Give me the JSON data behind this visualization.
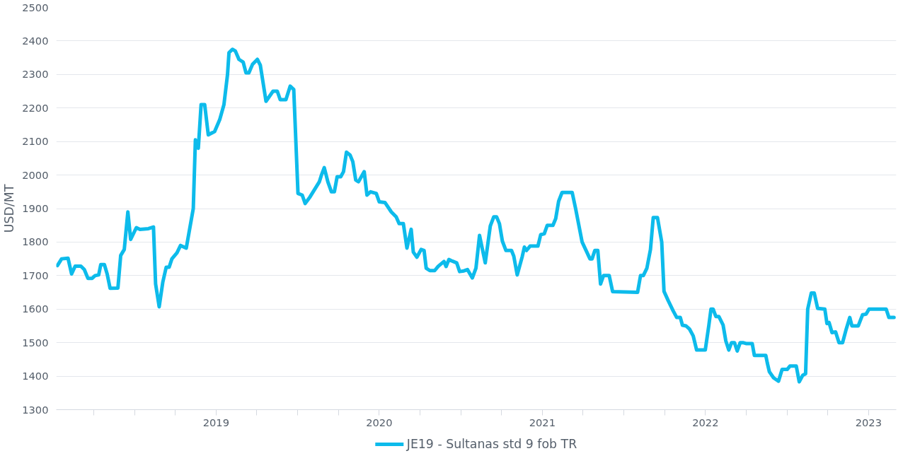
{
  "chart_data": {
    "type": "line",
    "ylabel": "USD/MT",
    "legend": "bottom",
    "grid": "y",
    "marker": "none",
    "line_style": "solid",
    "xlim": [
      2018.02,
      2023.17
    ],
    "ylim": [
      1300,
      2500
    ],
    "yticks": [
      1300,
      1400,
      1500,
      1600,
      1700,
      1800,
      1900,
      2000,
      2100,
      2200,
      2300,
      2400,
      2500
    ],
    "xticks": [
      {
        "value": 2018.25,
        "label": null
      },
      {
        "value": 2018.5,
        "label": null
      },
      {
        "value": 2018.75,
        "label": null
      },
      2019,
      {
        "value": 2019.25,
        "label": null
      },
      {
        "value": 2019.5,
        "label": null
      },
      {
        "value": 2019.75,
        "label": null
      },
      2020,
      {
        "value": 2020.25,
        "label": null
      },
      {
        "value": 2020.5,
        "label": null
      },
      {
        "value": 2020.75,
        "label": null
      },
      2021,
      {
        "value": 2021.25,
        "label": null
      },
      {
        "value": 2021.5,
        "label": null
      },
      {
        "value": 2021.75,
        "label": null
      },
      2022,
      {
        "value": 2022.25,
        "label": null
      },
      {
        "value": 2022.5,
        "label": null
      },
      {
        "value": 2022.75,
        "label": null
      },
      2023
    ],
    "series": [
      {
        "name": "JE19 - Sultanas std 9 fob TR",
        "color": "#0dbbeb",
        "x": [
          2018.027,
          2018.053,
          2018.092,
          2018.114,
          2018.136,
          2018.171,
          2018.192,
          2018.214,
          2018.24,
          2018.258,
          2018.28,
          2018.293,
          2018.315,
          2018.332,
          2018.35,
          2018.398,
          2018.415,
          2018.437,
          2018.459,
          2018.476,
          2018.511,
          2018.533,
          2018.585,
          2018.616,
          2018.629,
          2018.651,
          2018.673,
          2018.694,
          2018.712,
          2018.729,
          2018.76,
          2018.782,
          2018.817,
          2018.86,
          2018.873,
          2018.891,
          2018.908,
          2018.93,
          2018.952,
          2018.991,
          2019.022,
          2019.048,
          2019.07,
          2019.079,
          2019.1,
          2019.118,
          2019.14,
          2019.166,
          2019.183,
          2019.201,
          2019.223,
          2019.253,
          2019.271,
          2019.306,
          2019.349,
          2019.375,
          2019.393,
          2019.428,
          2019.454,
          2019.476,
          2019.502,
          2019.528,
          2019.546,
          2019.576,
          2019.633,
          2019.646,
          2019.663,
          2019.685,
          2019.707,
          2019.725,
          2019.742,
          2019.764,
          2019.781,
          2019.799,
          2019.821,
          2019.838,
          2019.856,
          2019.873,
          2019.908,
          2019.925,
          2019.947,
          2019.982,
          2020.0,
          2020.035,
          2020.074,
          2020.104,
          2020.122,
          2020.148,
          2020.17,
          2020.196,
          2020.209,
          2020.231,
          2020.257,
          2020.275,
          2020.288,
          2020.31,
          2020.34,
          2020.362,
          2020.397,
          2020.41,
          2020.427,
          2020.449,
          2020.475,
          2020.493,
          2020.519,
          2020.541,
          2020.571,
          2020.593,
          2020.615,
          2020.65,
          2020.681,
          2020.702,
          2020.72,
          2020.737,
          2020.755,
          2020.777,
          2020.811,
          2020.825,
          2020.846,
          2020.877,
          2020.89,
          2020.903,
          2020.925,
          2020.973,
          2020.99,
          2021.012,
          2021.03,
          2021.065,
          2021.082,
          2021.1,
          2021.121,
          2021.183,
          2021.204,
          2021.244,
          2021.292,
          2021.305,
          2021.322,
          2021.34,
          2021.357,
          2021.375,
          2021.41,
          2021.431,
          2021.584,
          2021.602,
          2021.619,
          2021.641,
          2021.663,
          2021.68,
          2021.706,
          2021.732,
          2021.746,
          2021.772,
          2021.802,
          2021.824,
          2021.846,
          2021.859,
          2021.881,
          2021.903,
          2021.925,
          2021.946,
          2021.999,
          2022.021,
          2022.034,
          2022.047,
          2022.064,
          2022.082,
          2022.108,
          2022.125,
          2022.143,
          2022.16,
          2022.178,
          2022.195,
          2022.213,
          2022.23,
          2022.252,
          2022.287,
          2022.3,
          2022.37,
          2022.379,
          2022.392,
          2022.418,
          2022.448,
          2022.47,
          2022.501,
          2022.518,
          2022.557,
          2022.575,
          2022.597,
          2022.614,
          2022.627,
          2022.649,
          2022.667,
          2022.688,
          2022.732,
          2022.745,
          2022.758,
          2022.776,
          2022.798,
          2022.819,
          2022.841,
          2022.863,
          2022.885,
          2022.898,
          2022.937,
          2022.963,
          2022.985,
          2023.003,
          2023.108,
          2023.125,
          2023.156
        ],
        "values": [
          1730,
          1750,
          1752,
          1705,
          1728,
          1728,
          1718,
          1692,
          1692,
          1700,
          1702,
          1733,
          1733,
          1705,
          1662,
          1663,
          1760,
          1778,
          1890,
          1808,
          1843,
          1838,
          1840,
          1845,
          1675,
          1607,
          1680,
          1725,
          1725,
          1750,
          1768,
          1790,
          1782,
          1900,
          2105,
          2080,
          2210,
          2210,
          2120,
          2130,
          2165,
          2210,
          2300,
          2365,
          2375,
          2370,
          2345,
          2337,
          2305,
          2305,
          2330,
          2345,
          2328,
          2220,
          2250,
          2250,
          2225,
          2225,
          2265,
          2255,
          1945,
          1940,
          1915,
          1935,
          1980,
          2000,
          2022,
          1980,
          1950,
          1950,
          1995,
          1995,
          2010,
          2068,
          2060,
          2040,
          1985,
          1980,
          2010,
          1940,
          1950,
          1945,
          1920,
          1918,
          1890,
          1875,
          1855,
          1855,
          1782,
          1838,
          1770,
          1755,
          1778,
          1775,
          1722,
          1715,
          1715,
          1728,
          1742,
          1727,
          1748,
          1743,
          1738,
          1712,
          1714,
          1718,
          1693,
          1722,
          1820,
          1738,
          1848,
          1875,
          1875,
          1855,
          1803,
          1775,
          1775,
          1758,
          1702,
          1757,
          1785,
          1775,
          1788,
          1788,
          1822,
          1825,
          1850,
          1850,
          1870,
          1922,
          1948,
          1948,
          1900,
          1800,
          1750,
          1750,
          1775,
          1775,
          1675,
          1700,
          1700,
          1652,
          1650,
          1700,
          1700,
          1722,
          1778,
          1873,
          1873,
          1800,
          1653,
          1625,
          1595,
          1575,
          1575,
          1552,
          1550,
          1540,
          1520,
          1478,
          1478,
          1552,
          1600,
          1600,
          1578,
          1578,
          1553,
          1505,
          1478,
          1500,
          1500,
          1475,
          1500,
          1500,
          1497,
          1497,
          1462,
          1462,
          1440,
          1413,
          1395,
          1385,
          1420,
          1420,
          1430,
          1430,
          1383,
          1403,
          1407,
          1600,
          1648,
          1648,
          1602,
          1600,
          1557,
          1560,
          1530,
          1532,
          1500,
          1500,
          1540,
          1575,
          1550,
          1550,
          1583,
          1585,
          1600,
          1600,
          1575,
          1575
        ]
      }
    ]
  }
}
